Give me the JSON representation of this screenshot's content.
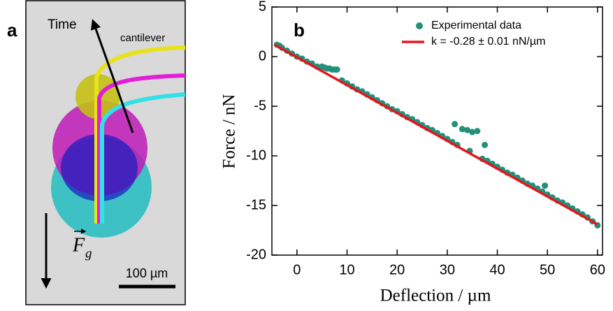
{
  "panel_a": {
    "label": "a",
    "time": "Time",
    "cantilever": "cantilever",
    "scale_bar": "100 µm",
    "force_symbol": "F",
    "force_subscript": "g"
  },
  "chart_data": {
    "type": "scatter",
    "panel_label": "b",
    "xlabel": "Deflection / µm",
    "ylabel": "Force / nN",
    "xlim": [
      -5,
      61
    ],
    "ylim": [
      -20,
      5
    ],
    "xticks": [
      0,
      10,
      20,
      30,
      40,
      50,
      60
    ],
    "yticks": [
      5,
      0,
      -5,
      -10,
      -15,
      -20
    ],
    "legend": "top-right",
    "series": [
      {
        "name": "Experimental data",
        "mode": "markers",
        "color": "#23907a",
        "x": [
          -4,
          -3.5,
          -3,
          -2,
          -1,
          0,
          1,
          2,
          3,
          4,
          5,
          5.5,
          6,
          6.5,
          7,
          7.5,
          8,
          9,
          10,
          11,
          12,
          13,
          14,
          15,
          16,
          17,
          18,
          19,
          20,
          21,
          22,
          23,
          24,
          25,
          26,
          27,
          28,
          29,
          30,
          31,
          31.5,
          32,
          33,
          34,
          34.5,
          35,
          36,
          37,
          37.5,
          38,
          39,
          40,
          41,
          42,
          43,
          44,
          45,
          46,
          47,
          48,
          49,
          49.5,
          50,
          51,
          52,
          53,
          54,
          55,
          56,
          57,
          58,
          59,
          60
        ],
        "values": [
          1.2,
          1.1,
          0.9,
          0.6,
          0.3,
          0.0,
          -0.2,
          -0.5,
          -0.7,
          -1.0,
          -1.0,
          -1.1,
          -1.2,
          -1.2,
          -1.3,
          -1.3,
          -1.3,
          -2.4,
          -2.7,
          -3.0,
          -3.3,
          -3.5,
          -3.8,
          -4.1,
          -4.4,
          -4.7,
          -5.0,
          -5.3,
          -5.5,
          -5.8,
          -6.1,
          -6.3,
          -6.6,
          -6.9,
          -7.2,
          -7.4,
          -7.7,
          -8.0,
          -8.3,
          -8.6,
          -6.8,
          -8.9,
          -7.3,
          -7.4,
          -9.5,
          -7.6,
          -7.5,
          -10.3,
          -8.9,
          -10.5,
          -10.8,
          -11.1,
          -11.4,
          -11.7,
          -11.9,
          -12.2,
          -12.5,
          -12.8,
          -13.0,
          -13.3,
          -13.6,
          -13.0,
          -13.9,
          -14.2,
          -14.5,
          -14.7,
          -15.0,
          -15.3,
          -15.6,
          -15.9,
          -16.2,
          -16.6,
          -17.0
        ]
      },
      {
        "name": "k = -0.28 ± 0.01 nN/µm",
        "mode": "line",
        "color": "#e8141b",
        "x": [
          -4.5,
          60
        ],
        "values": [
          1.2,
          -16.9
        ]
      }
    ]
  }
}
